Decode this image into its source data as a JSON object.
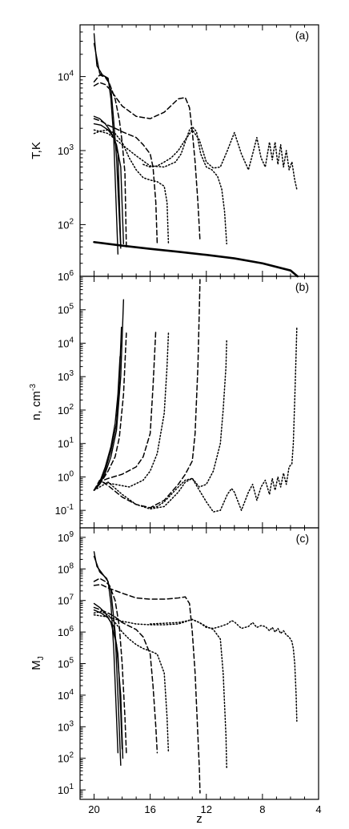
{
  "chart_data": [
    {
      "type": "line",
      "panel_label": "(a)",
      "ylabel": "T,K",
      "yscale": "log",
      "xlim": [
        21,
        4
      ],
      "ylim": [
        20,
        50000
      ],
      "yticks": [
        {
          "v": 100,
          "b": "10",
          "e": "2"
        },
        {
          "v": 1000,
          "b": "10",
          "e": "3"
        },
        {
          "v": 10000,
          "b": "10",
          "e": "4"
        }
      ],
      "series": [
        {
          "style": "thick",
          "x": [
            20,
            18,
            16,
            14,
            12,
            10,
            8,
            6,
            5.5
          ],
          "y": [
            58,
            52,
            47,
            43,
            39,
            35,
            30,
            24,
            20
          ]
        },
        {
          "style": "solid",
          "x": [
            20,
            19.8,
            19.4,
            19.0,
            18.8,
            18.6,
            18.3
          ],
          "y": [
            38000,
            14000,
            10500,
            9500,
            5000,
            1500,
            40
          ]
        },
        {
          "style": "solid",
          "x": [
            20,
            19.6,
            19.1,
            18.8,
            18.6,
            18.4,
            18.1
          ],
          "y": [
            28000,
            11000,
            9700,
            7000,
            2500,
            800,
            48
          ]
        },
        {
          "style": "solid",
          "x": [
            20,
            19.6,
            19.2,
            18.8,
            18.4,
            18.1,
            17.9
          ],
          "y": [
            2900,
            2700,
            2300,
            1800,
            1200,
            600,
            55
          ]
        },
        {
          "style": "solid",
          "x": [
            20,
            19.5,
            19.0,
            18.6,
            18.3,
            18.1
          ],
          "y": [
            2300,
            2200,
            1900,
            1500,
            900,
            52
          ]
        },
        {
          "style": "dash",
          "x": [
            20,
            19.6,
            19.2,
            18.9,
            18.5,
            18.2,
            18.0,
            17.8,
            17.7
          ],
          "y": [
            8500,
            10500,
            9800,
            8000,
            5000,
            2600,
            1300,
            500,
            50
          ]
        },
        {
          "style": "dash",
          "x": [
            20,
            19.6,
            19.2,
            18.8,
            18.0,
            17.0,
            16.0,
            15.0,
            14.0,
            13.5,
            13.2,
            13.0,
            12.8,
            12.6,
            12.45
          ],
          "y": [
            7500,
            8300,
            7800,
            6500,
            4000,
            2900,
            2700,
            3300,
            5000,
            5200,
            3800,
            1800,
            700,
            200,
            60
          ]
        },
        {
          "style": "dash",
          "x": [
            20,
            19.5,
            19.0,
            18.5,
            18.0,
            17.0,
            16.5,
            16.0,
            15.8,
            15.6,
            15.5
          ],
          "y": [
            2700,
            2500,
            2200,
            2000,
            1800,
            1500,
            1200,
            900,
            600,
            200,
            55
          ]
        },
        {
          "style": "dot",
          "x": [
            20,
            19.5,
            19.0,
            18.5,
            18.0,
            17.5,
            17.0,
            16.5,
            16.0,
            15.5,
            15.0,
            14.8,
            14.7
          ],
          "y": [
            1700,
            1850,
            1900,
            1700,
            1300,
            800,
            550,
            430,
            400,
            380,
            330,
            200,
            55
          ]
        },
        {
          "style": "dot",
          "x": [
            20,
            19,
            18,
            17,
            16,
            15,
            14.2,
            13.8,
            13.2,
            13.0,
            12.7,
            12.4,
            12.0,
            11.6,
            11.2,
            10.9,
            10.7,
            10.55
          ],
          "y": [
            1900,
            1700,
            1200,
            850,
            620,
            600,
            700,
            900,
            1900,
            2100,
            1800,
            900,
            600,
            550,
            450,
            300,
            150,
            55
          ]
        },
        {
          "style": "dot",
          "x": [
            16.5,
            16.0,
            15.5,
            15.0,
            14.5,
            14.0,
            13.5,
            13.0,
            12.5,
            12.0,
            11.5,
            11.0,
            10.5,
            10.0,
            9.5,
            9.0,
            8.7,
            8.4,
            8.1,
            7.8,
            7.5,
            7.3,
            7.1,
            6.9,
            6.7,
            6.5,
            6.3,
            6.1,
            5.9,
            5.7,
            5.55
          ],
          "y": [
            650,
            600,
            620,
            700,
            800,
            1000,
            1400,
            1900,
            1400,
            700,
            580,
            600,
            1000,
            1750,
            900,
            550,
            900,
            1500,
            800,
            600,
            1300,
            750,
            1300,
            650,
            1200,
            600,
            1000,
            550,
            700,
            400,
            300
          ]
        }
      ]
    },
    {
      "type": "line",
      "panel_label": "(b)",
      "ylabel": "n, cm",
      "ylabel_sup": "-3",
      "yscale": "log",
      "xlim": [
        21,
        4
      ],
      "ylim": [
        0.03,
        1000000
      ],
      "yticks": [
        {
          "v": 0.1,
          "b": "10",
          "e": "-1"
        },
        {
          "v": 1,
          "b": "10",
          "e": "0"
        },
        {
          "v": 10,
          "b": "10",
          "e": "1"
        },
        {
          "v": 100,
          "b": "10",
          "e": "2"
        },
        {
          "v": 1000,
          "b": "10",
          "e": "3"
        },
        {
          "v": 10000,
          "b": "10",
          "e": "4"
        },
        {
          "v": 100000,
          "b": "10",
          "e": "5"
        },
        {
          "v": 1000000,
          "b": "10",
          "e": "6"
        }
      ],
      "series": [
        {
          "style": "solid",
          "x": [
            20,
            19.6,
            19.2,
            18.8,
            18.5,
            18.3,
            18.15
          ],
          "y": [
            0.4,
            0.7,
            2,
            8,
            40,
            300,
            4000
          ]
        },
        {
          "style": "solid",
          "x": [
            20,
            19.6,
            19.2,
            18.8,
            18.4,
            18.2,
            18.05
          ],
          "y": [
            0.4,
            0.65,
            1.6,
            6,
            40,
            800,
            30000
          ]
        },
        {
          "style": "solid",
          "x": [
            20,
            19.6,
            19.2,
            18.8,
            18.4,
            18.1,
            17.9
          ],
          "y": [
            0.4,
            0.6,
            1.3,
            4,
            25,
            1000,
            200000
          ]
        },
        {
          "style": "dash",
          "x": [
            20,
            19.5,
            19.0,
            18.5,
            18.2,
            17.9,
            17.7
          ],
          "y": [
            0.4,
            0.7,
            1.5,
            4,
            15,
            300,
            20000
          ]
        },
        {
          "style": "dash",
          "x": [
            20,
            19.5,
            19.0,
            18.0,
            17.0,
            16.5,
            16.0,
            15.8,
            15.6
          ],
          "y": [
            0.4,
            0.75,
            0.9,
            1.2,
            2,
            4,
            20,
            500,
            25000
          ]
        },
        {
          "style": "dash",
          "x": [
            20,
            19.6,
            19.0,
            18.0,
            17.0,
            16.0,
            15.0,
            14.0,
            13.5,
            13.0,
            12.8,
            12.6,
            12.5,
            12.45
          ],
          "y": [
            0.4,
            0.8,
            0.55,
            0.25,
            0.15,
            0.12,
            0.2,
            0.6,
            1.2,
            3,
            20,
            2000,
            100000,
            800000
          ]
        },
        {
          "style": "dot",
          "x": [
            20,
            19.5,
            18.5,
            17.5,
            16.5,
            16.0,
            15.5,
            15.0,
            14.8,
            14.7
          ],
          "y": [
            0.4,
            0.7,
            0.6,
            0.5,
            0.8,
            1.5,
            5,
            80,
            2000,
            20000
          ]
        },
        {
          "style": "dot",
          "x": [
            20,
            19.0,
            18.0,
            17.0,
            16.0,
            15.0,
            14.0,
            13.5,
            13.0,
            12.5,
            12.0,
            11.5,
            11.0,
            10.8,
            10.6,
            10.55
          ],
          "y": [
            0.4,
            0.7,
            0.3,
            0.15,
            0.11,
            0.13,
            0.35,
            0.7,
            0.9,
            0.5,
            0.6,
            1.5,
            10,
            100,
            2000,
            12000
          ]
        },
        {
          "style": "dot",
          "x": [
            16,
            15.5,
            15.0,
            14.5,
            14.0,
            13.5,
            13.0,
            12.5,
            12.0,
            11.5,
            11.0,
            10.5,
            10.2,
            10.0,
            9.5,
            9.0,
            8.7,
            8.4,
            8.1,
            7.8,
            7.5,
            7.3,
            7.1,
            6.9,
            6.7,
            6.5,
            6.3,
            6.1,
            5.9,
            5.8,
            5.7,
            5.6,
            5.55
          ],
          "y": [
            0.12,
            0.13,
            0.18,
            0.3,
            0.5,
            0.8,
            0.9,
            0.4,
            0.18,
            0.09,
            0.1,
            0.3,
            0.45,
            0.35,
            0.1,
            0.35,
            0.6,
            0.2,
            0.5,
            0.8,
            0.3,
            0.9,
            0.4,
            1.0,
            0.5,
            1.3,
            0.6,
            2,
            2.5,
            10,
            200,
            5000,
            30000
          ]
        }
      ]
    },
    {
      "type": "line",
      "panel_label": "(c)",
      "ylabel": "M",
      "ylabel_sub": "J",
      "xlabel": "z",
      "yscale": "log",
      "xlim": [
        21,
        4
      ],
      "ylim": [
        5,
        2000000000
      ],
      "yticks": [
        {
          "v": 10,
          "b": "10",
          "e": "1"
        },
        {
          "v": 100,
          "b": "10",
          "e": "2"
        },
        {
          "v": 1000,
          "b": "10",
          "e": "3"
        },
        {
          "v": 10000,
          "b": "10",
          "e": "4"
        },
        {
          "v": 100000,
          "b": "10",
          "e": "5"
        },
        {
          "v": 1000000,
          "b": "10",
          "e": "6"
        },
        {
          "v": 10000000,
          "b": "10",
          "e": "7"
        },
        {
          "v": 100000000,
          "b": "10",
          "e": "8"
        },
        {
          "v": 1000000000,
          "b": "10",
          "e": "9"
        }
      ],
      "xticks": [
        20,
        16,
        12,
        8,
        4
      ],
      "series": [
        {
          "style": "solid",
          "x": [
            20,
            19.8,
            19.4,
            19.0,
            18.8,
            18.6,
            18.4,
            18.3
          ],
          "y": [
            350000000,
            120000000,
            70000000,
            40000000,
            8000000,
            300000,
            2000,
            150
          ]
        },
        {
          "style": "solid",
          "x": [
            20,
            19.6,
            19.1,
            18.8,
            18.5,
            18.3,
            18.1
          ],
          "y": [
            250000000,
            80000000,
            50000000,
            20000000,
            1000000,
            10000,
            60
          ]
        },
        {
          "style": "solid",
          "x": [
            20,
            19.6,
            19.2,
            18.8,
            18.4,
            18.1,
            17.95
          ],
          "y": [
            8000000,
            6000000,
            4000000,
            2000000,
            400000,
            10000,
            100
          ]
        },
        {
          "style": "solid",
          "x": [
            20,
            19.5,
            19.0,
            18.6,
            18.3,
            18.1,
            18.0
          ],
          "y": [
            5000000,
            4000000,
            2800000,
            1500000,
            200000,
            3000,
            200
          ]
        },
        {
          "style": "dash",
          "x": [
            20,
            19.6,
            19.2,
            18.9,
            18.5,
            18.2,
            18.0,
            17.8,
            17.7
          ],
          "y": [
            40000000,
            50000000,
            40000000,
            30000000,
            10000000,
            1500000,
            100000,
            2000,
            150
          ]
        },
        {
          "style": "dash",
          "x": [
            20,
            19.5,
            19.0,
            18.0,
            17.0,
            16.0,
            15.0,
            14.0,
            13.5,
            13.2,
            13.0,
            12.8,
            12.6,
            12.5,
            12.45
          ],
          "y": [
            30000000,
            32000000,
            25000000,
            17000000,
            12000000,
            11000000,
            11000000,
            12000000,
            13000000,
            8000000,
            1000000,
            50000,
            500,
            50,
            8
          ]
        },
        {
          "style": "dash",
          "x": [
            20,
            19.5,
            19.0,
            18.5,
            18.0,
            17.0,
            16.5,
            16.0,
            15.8,
            15.6,
            15.5
          ],
          "y": [
            6000000,
            5000000,
            4000000,
            3000000,
            2000000,
            1200000,
            700000,
            200000,
            20000,
            1000,
            150
          ]
        },
        {
          "style": "dot",
          "x": [
            20,
            19.5,
            19.0,
            18.5,
            18.0,
            17.5,
            17.0,
            16.5,
            16.0,
            15.5,
            15.0,
            14.8,
            14.7
          ],
          "y": [
            4000000,
            4500000,
            3500000,
            2000000,
            1000000,
            600000,
            400000,
            300000,
            250000,
            200000,
            50000,
            2000,
            150
          ]
        },
        {
          "style": "dot",
          "x": [
            20,
            19.0,
            18.0,
            17.0,
            16.0,
            15.0,
            14.0,
            13.0,
            12.5,
            12.0,
            11.5,
            11.0,
            10.8,
            10.6,
            10.55
          ],
          "y": [
            3500000,
            3000000,
            2200000,
            1800000,
            1700000,
            1700000,
            1800000,
            2500000,
            2000000,
            1500000,
            1200000,
            600000,
            50000,
            500,
            50
          ]
        },
        {
          "style": "dot",
          "x": [
            16,
            15,
            14,
            13.5,
            13.0,
            12.5,
            12.0,
            11.5,
            11.0,
            10.5,
            10.2,
            10.0,
            9.5,
            9.0,
            8.7,
            8.4,
            8.1,
            7.8,
            7.5,
            7.3,
            7.1,
            6.9,
            6.7,
            6.5,
            6.3,
            6.1,
            5.9,
            5.8,
            5.7,
            5.6,
            5.55
          ],
          "y": [
            1800000,
            1900000,
            2000000,
            2200000,
            2500000,
            2000000,
            1400000,
            1300000,
            1500000,
            1800000,
            2300000,
            2100000,
            1300000,
            1500000,
            2000000,
            1400000,
            1600000,
            1500000,
            1100000,
            1400000,
            1000000,
            1300000,
            900000,
            1100000,
            800000,
            700000,
            500000,
            300000,
            100000,
            10000,
            1500
          ]
        }
      ]
    }
  ]
}
